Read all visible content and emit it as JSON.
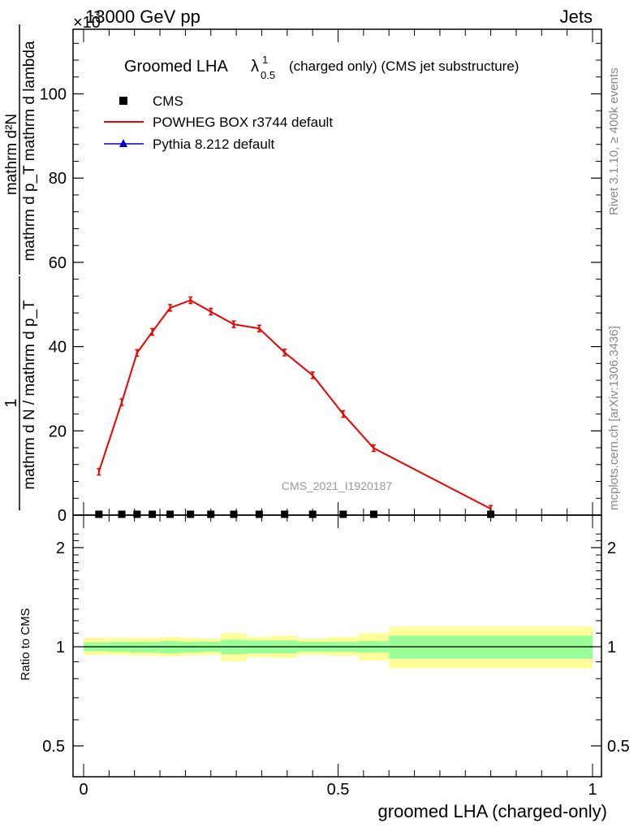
{
  "header": {
    "energy_label": "13000 GeV pp",
    "scale_label": "×10",
    "scale_exp": "-3",
    "process_label": "Jets"
  },
  "side_labels": {
    "rivet": "Rivet 3.1.10, ≥ 400k events",
    "mcplots": "mcplots.cern.ch [arXiv:1306.3436]"
  },
  "watermark": "CMS_2021_I1920187",
  "chart_data": [
    {
      "type": "line",
      "panel": "main",
      "title": "Groomed LHA",
      "title_symbol": "λ",
      "title_sup": "1",
      "title_sub": "0.5",
      "title_suffix": "(charged only) (CMS jet substructure)",
      "ylabel_numerator": "mathrm d²N",
      "ylabel_denominator": "mathrm d p_T mathrm d lambda",
      "ylabel_front_numerator": "1",
      "ylabel_front_denominator": "mathrm d N / mathrm d p_T",
      "xlim": [
        0,
        1
      ],
      "ylim": [
        0,
        115
      ],
      "yticks": [
        0,
        20,
        40,
        60,
        80,
        100
      ],
      "ytick_labels": [
        "0",
        "20",
        "40",
        "60",
        "80",
        "100"
      ],
      "legend_position": "top-left",
      "legend": [
        {
          "label": "CMS",
          "marker": "square",
          "color": "#000000"
        },
        {
          "label": "POWHEG BOX r3744 default",
          "marker": "line",
          "color": "#ee0000"
        },
        {
          "label": "Pythia 8.212 default",
          "marker": "triangle",
          "color": "#0000cc"
        }
      ],
      "series": [
        {
          "name": "POWHEG BOX r3744 default",
          "color": "#ee0000",
          "x": [
            0.03,
            0.075,
            0.105,
            0.135,
            0.17,
            0.21,
            0.25,
            0.295,
            0.345,
            0.395,
            0.45,
            0.51,
            0.57,
            0.8
          ],
          "values": [
            10.3,
            26.8,
            38.5,
            43.5,
            49.2,
            51.0,
            48.3,
            45.3,
            44.3,
            38.6,
            33.2,
            24.0,
            15.9,
            1.5
          ]
        }
      ],
      "cms_x": [
        0.03,
        0.075,
        0.105,
        0.135,
        0.17,
        0.21,
        0.25,
        0.295,
        0.345,
        0.395,
        0.45,
        0.51,
        0.57,
        0.8
      ],
      "cms_values": [
        0.2,
        0.2,
        0.2,
        0.2,
        0.2,
        0.2,
        0.2,
        0.2,
        0.2,
        0.2,
        0.2,
        0.2,
        0.2,
        0.2
      ]
    },
    {
      "type": "area",
      "panel": "ratio",
      "ylabel": "Ratio to CMS",
      "xlabel": "groomed LHA (charged-only)",
      "xlim": [
        0,
        1
      ],
      "xticks": [
        0,
        0.5,
        1
      ],
      "xtick_labels": [
        "0",
        "0.5",
        "1"
      ],
      "yticks": [
        0.5,
        1,
        2
      ],
      "ytick_labels": [
        "0.5",
        "1",
        "2"
      ],
      "bin_edges": [
        0,
        0.05,
        0.09,
        0.12,
        0.15,
        0.19,
        0.23,
        0.27,
        0.32,
        0.37,
        0.42,
        0.48,
        0.54,
        0.6,
        1.0
      ],
      "inner_band_lo": [
        0.97,
        0.965,
        0.96,
        0.96,
        0.955,
        0.96,
        0.965,
        0.95,
        0.955,
        0.955,
        0.965,
        0.965,
        0.96,
        0.92
      ],
      "inner_band_hi": [
        1.03,
        1.035,
        1.035,
        1.035,
        1.04,
        1.035,
        1.035,
        1.05,
        1.045,
        1.045,
        1.035,
        1.035,
        1.04,
        1.08
      ],
      "outer_band_lo": [
        0.945,
        0.945,
        0.94,
        0.94,
        0.935,
        0.94,
        0.945,
        0.905,
        0.93,
        0.925,
        0.945,
        0.94,
        0.91,
        0.86
      ],
      "outer_band_hi": [
        1.065,
        1.065,
        1.065,
        1.065,
        1.07,
        1.065,
        1.06,
        1.1,
        1.07,
        1.08,
        1.06,
        1.07,
        1.1,
        1.15
      ],
      "reference_line": 1,
      "inner_band_color": "#99ff99",
      "outer_band_color": "#ffff99"
    }
  ]
}
